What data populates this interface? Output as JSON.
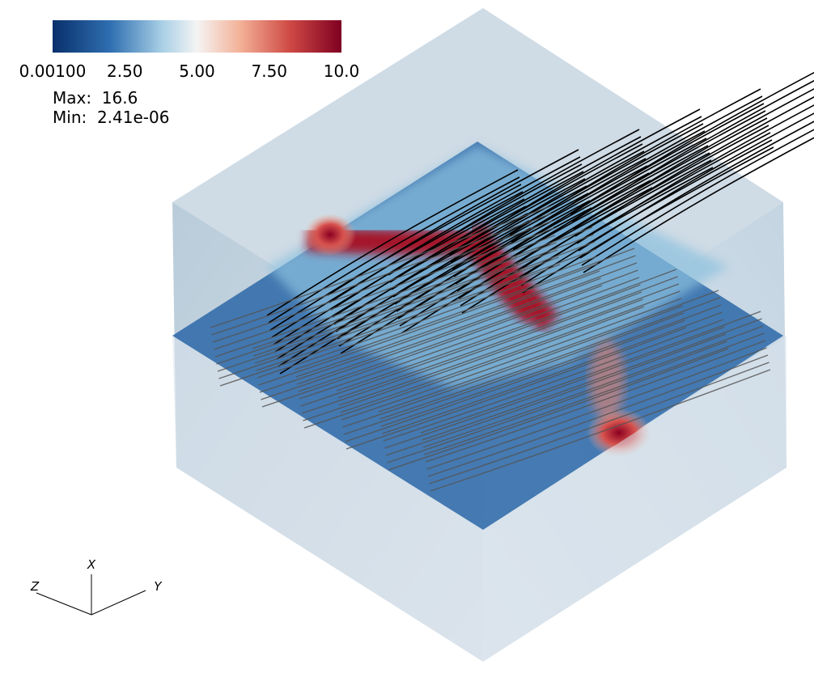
{
  "colorbar": {
    "ticks": [
      "0.00100",
      "2.50",
      "5.00",
      "7.50",
      "10.0"
    ]
  },
  "range_info": {
    "max": "Max:  16.6",
    "min": "Min:  2.41e-06"
  },
  "axes": {
    "x": "X",
    "y": "Y",
    "z": "Z"
  }
}
